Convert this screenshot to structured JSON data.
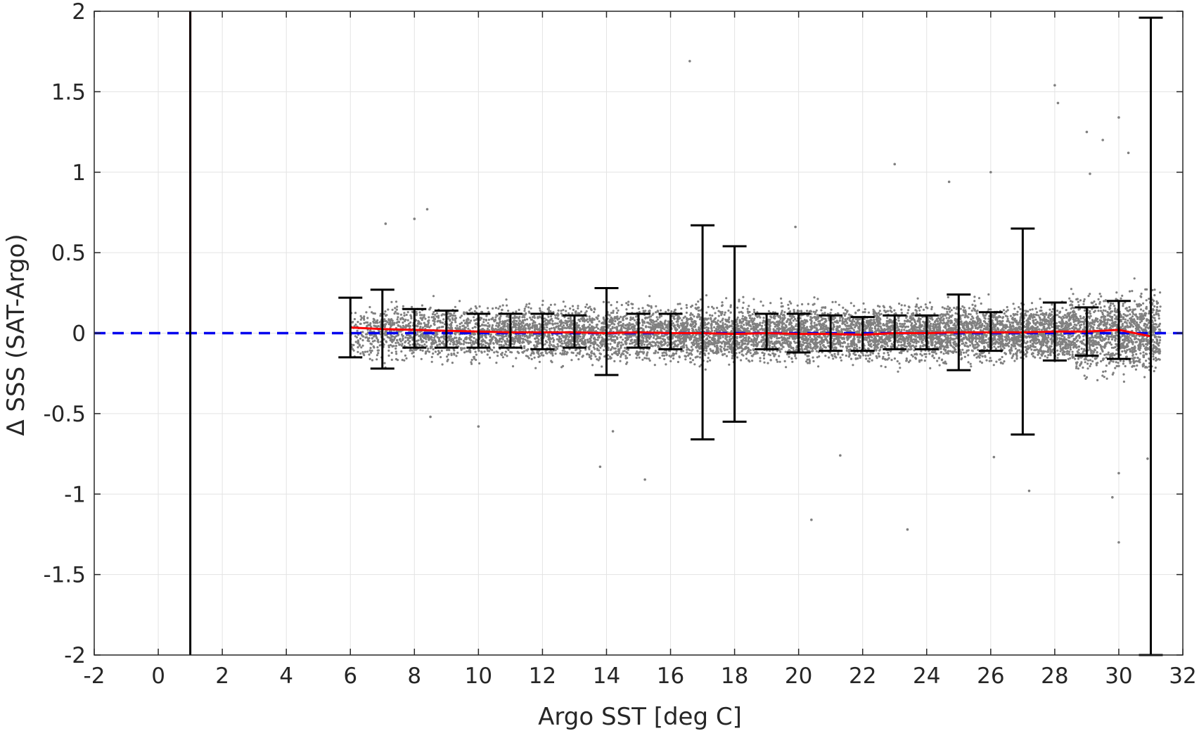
{
  "chart_data": {
    "type": "scatter",
    "title": "",
    "xlabel": "Argo SST [deg C]",
    "ylabel": "Δ SSS (SAT-Argo)",
    "xlim": [
      -2,
      32
    ],
    "ylim": [
      -2,
      2
    ],
    "xticks": [
      -2,
      0,
      2,
      4,
      6,
      8,
      10,
      12,
      14,
      16,
      18,
      20,
      22,
      24,
      26,
      28,
      30,
      32
    ],
    "yticks": [
      -2,
      -1.5,
      -1,
      -0.5,
      0,
      0.5,
      1,
      1.5,
      2
    ],
    "xtick_labels": [
      "-2",
      "0",
      "2",
      "4",
      "6",
      "8",
      "10",
      "12",
      "14",
      "16",
      "18",
      "20",
      "22",
      "24",
      "26",
      "28",
      "30",
      "32"
    ],
    "ytick_labels": [
      "-2",
      "-1.5",
      "-1",
      "-0.5",
      "0",
      "0.5",
      "1",
      "1.5",
      "2"
    ],
    "grid": true,
    "colors": {
      "scatter": "#808080",
      "mean_line": "#ff0000",
      "zero_line": "#0000ee",
      "error_bars": "#000000",
      "grid": "#e3e3e3",
      "axes": "#262626"
    },
    "scatter_cloud": {
      "x_range": [
        6,
        31.3
      ],
      "center": 0,
      "approx_std": 0.08
    },
    "outliers": [
      {
        "x": 16.6,
        "y": 1.69
      },
      {
        "x": 28.0,
        "y": 1.54
      },
      {
        "x": 28.1,
        "y": 1.43
      },
      {
        "x": 29.0,
        "y": 1.25
      },
      {
        "x": 29.5,
        "y": 1.2
      },
      {
        "x": 30.0,
        "y": 1.34
      },
      {
        "x": 30.3,
        "y": 1.12
      },
      {
        "x": 23.0,
        "y": 1.05
      },
      {
        "x": 26.0,
        "y": 1.0
      },
      {
        "x": 24.7,
        "y": 0.94
      },
      {
        "x": 29.1,
        "y": 0.99
      },
      {
        "x": 8.4,
        "y": 0.77
      },
      {
        "x": 8.0,
        "y": 0.71
      },
      {
        "x": 7.1,
        "y": 0.68
      },
      {
        "x": 19.9,
        "y": 0.66
      },
      {
        "x": 13.8,
        "y": -0.83
      },
      {
        "x": 15.2,
        "y": -0.91
      },
      {
        "x": 21.3,
        "y": -0.76
      },
      {
        "x": 20.4,
        "y": -1.16
      },
      {
        "x": 23.4,
        "y": -1.22
      },
      {
        "x": 27.2,
        "y": -0.98
      },
      {
        "x": 29.8,
        "y": -1.02
      },
      {
        "x": 30.0,
        "y": -0.87
      },
      {
        "x": 30.0,
        "y": -1.3
      },
      {
        "x": 30.9,
        "y": -0.78
      },
      {
        "x": 26.1,
        "y": -0.77
      },
      {
        "x": 10.0,
        "y": -0.58
      },
      {
        "x": 8.5,
        "y": -0.52
      },
      {
        "x": 14.2,
        "y": -0.61
      }
    ],
    "error_bars": [
      {
        "x": 1,
        "upper": 2,
        "lower": -2
      },
      {
        "x": 6,
        "upper": 0.22,
        "lower": -0.15
      },
      {
        "x": 7,
        "upper": 0.27,
        "lower": -0.22
      },
      {
        "x": 8,
        "upper": 0.15,
        "lower": -0.09
      },
      {
        "x": 9,
        "upper": 0.14,
        "lower": -0.09
      },
      {
        "x": 10,
        "upper": 0.12,
        "lower": -0.09
      },
      {
        "x": 11,
        "upper": 0.12,
        "lower": -0.09
      },
      {
        "x": 12,
        "upper": 0.12,
        "lower": -0.1
      },
      {
        "x": 13,
        "upper": 0.11,
        "lower": -0.09
      },
      {
        "x": 14,
        "upper": 0.28,
        "lower": -0.26
      },
      {
        "x": 15,
        "upper": 0.12,
        "lower": -0.09
      },
      {
        "x": 16,
        "upper": 0.12,
        "lower": -0.1
      },
      {
        "x": 17,
        "upper": 0.67,
        "lower": -0.66
      },
      {
        "x": 18,
        "upper": 0.54,
        "lower": -0.55
      },
      {
        "x": 19,
        "upper": 0.12,
        "lower": -0.1
      },
      {
        "x": 20,
        "upper": 0.12,
        "lower": -0.12
      },
      {
        "x": 21,
        "upper": 0.11,
        "lower": -0.11
      },
      {
        "x": 22,
        "upper": 0.1,
        "lower": -0.11
      },
      {
        "x": 23,
        "upper": 0.11,
        "lower": -0.1
      },
      {
        "x": 24,
        "upper": 0.11,
        "lower": -0.1
      },
      {
        "x": 25,
        "upper": 0.24,
        "lower": -0.23
      },
      {
        "x": 26,
        "upper": 0.13,
        "lower": -0.11
      },
      {
        "x": 27,
        "upper": 0.65,
        "lower": -0.63
      },
      {
        "x": 28,
        "upper": 0.19,
        "lower": -0.17
      },
      {
        "x": 29,
        "upper": 0.16,
        "lower": -0.14
      },
      {
        "x": 30,
        "upper": 0.2,
        "lower": -0.16
      },
      {
        "x": 31,
        "upper": 1.96,
        "lower": -2
      }
    ],
    "mean_line": {
      "x": [
        1,
        1,
        6,
        7,
        8,
        9,
        10,
        11,
        12,
        13,
        14,
        15,
        16,
        17,
        18,
        19,
        20,
        21,
        22,
        23,
        24,
        25,
        26,
        27,
        28,
        29,
        30,
        31
      ],
      "y": [
        2,
        0.02,
        0.035,
        0.025,
        0.02,
        0.015,
        0.01,
        0.005,
        0.005,
        0.005,
        0.0,
        0.005,
        0.0,
        0.0,
        -0.005,
        0.0,
        -0.005,
        -0.005,
        -0.01,
        0.0,
        0.0,
        0.005,
        0.005,
        0.005,
        0.01,
        0.01,
        0.02,
        -0.02
      ]
    },
    "zero_line": {
      "y": 0
    }
  }
}
